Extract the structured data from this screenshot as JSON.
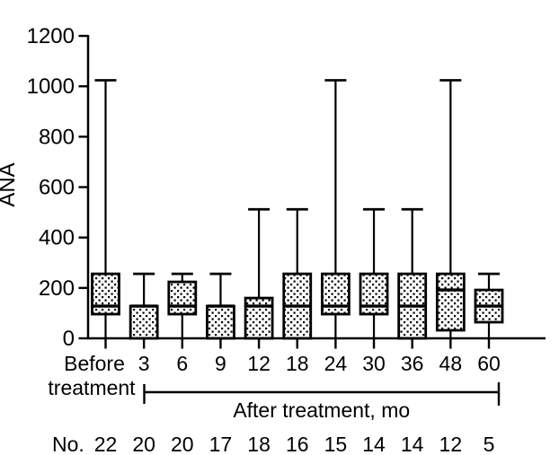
{
  "figure": {
    "background": "#ffffff",
    "line_color": "#000000",
    "box_fill_style": "stippled-dots"
  },
  "chart_data": {
    "type": "box",
    "title": "",
    "ylabel": "ANA",
    "xlabel": "",
    "ylim": [
      0,
      1200
    ],
    "yticks": [
      0,
      200,
      400,
      600,
      800,
      1000,
      1200
    ],
    "grid": false,
    "legend": "none",
    "x_axis": {
      "before_label_lines": [
        "Before",
        "treatment"
      ],
      "group_label": "After treatment, mo",
      "count_row_label": "No."
    },
    "categories": [
      "Before treatment",
      "3",
      "6",
      "9",
      "12",
      "18",
      "24",
      "30",
      "36",
      "48",
      "60"
    ],
    "series": [
      {
        "label": "Before treatment",
        "n": 22,
        "low": 0,
        "q1": 96,
        "median": 128,
        "q3": 256,
        "high": 1024
      },
      {
        "label": "3",
        "n": 20,
        "low": 0,
        "q1": 0,
        "median": 128,
        "q3": 128,
        "high": 256
      },
      {
        "label": "6",
        "n": 20,
        "low": 0,
        "q1": 96,
        "median": 128,
        "q3": 224,
        "high": 256
      },
      {
        "label": "9",
        "n": 17,
        "low": 0,
        "q1": 0,
        "median": 128,
        "q3": 128,
        "high": 256
      },
      {
        "label": "12",
        "n": 18,
        "low": 0,
        "q1": 0,
        "median": 128,
        "q3": 160,
        "high": 512
      },
      {
        "label": "18",
        "n": 16,
        "low": 0,
        "q1": 0,
        "median": 128,
        "q3": 256,
        "high": 512
      },
      {
        "label": "24",
        "n": 15,
        "low": 0,
        "q1": 96,
        "median": 128,
        "q3": 256,
        "high": 1024
      },
      {
        "label": "30",
        "n": 14,
        "low": 0,
        "q1": 96,
        "median": 128,
        "q3": 256,
        "high": 512
      },
      {
        "label": "36",
        "n": 14,
        "low": 0,
        "q1": 0,
        "median": 128,
        "q3": 256,
        "high": 512
      },
      {
        "label": "48",
        "n": 12,
        "low": 0,
        "q1": 32,
        "median": 192,
        "q3": 256,
        "high": 1024
      },
      {
        "label": "60",
        "n": 5,
        "low": 0,
        "q1": 64,
        "median": 128,
        "q3": 192,
        "high": 256
      }
    ]
  }
}
